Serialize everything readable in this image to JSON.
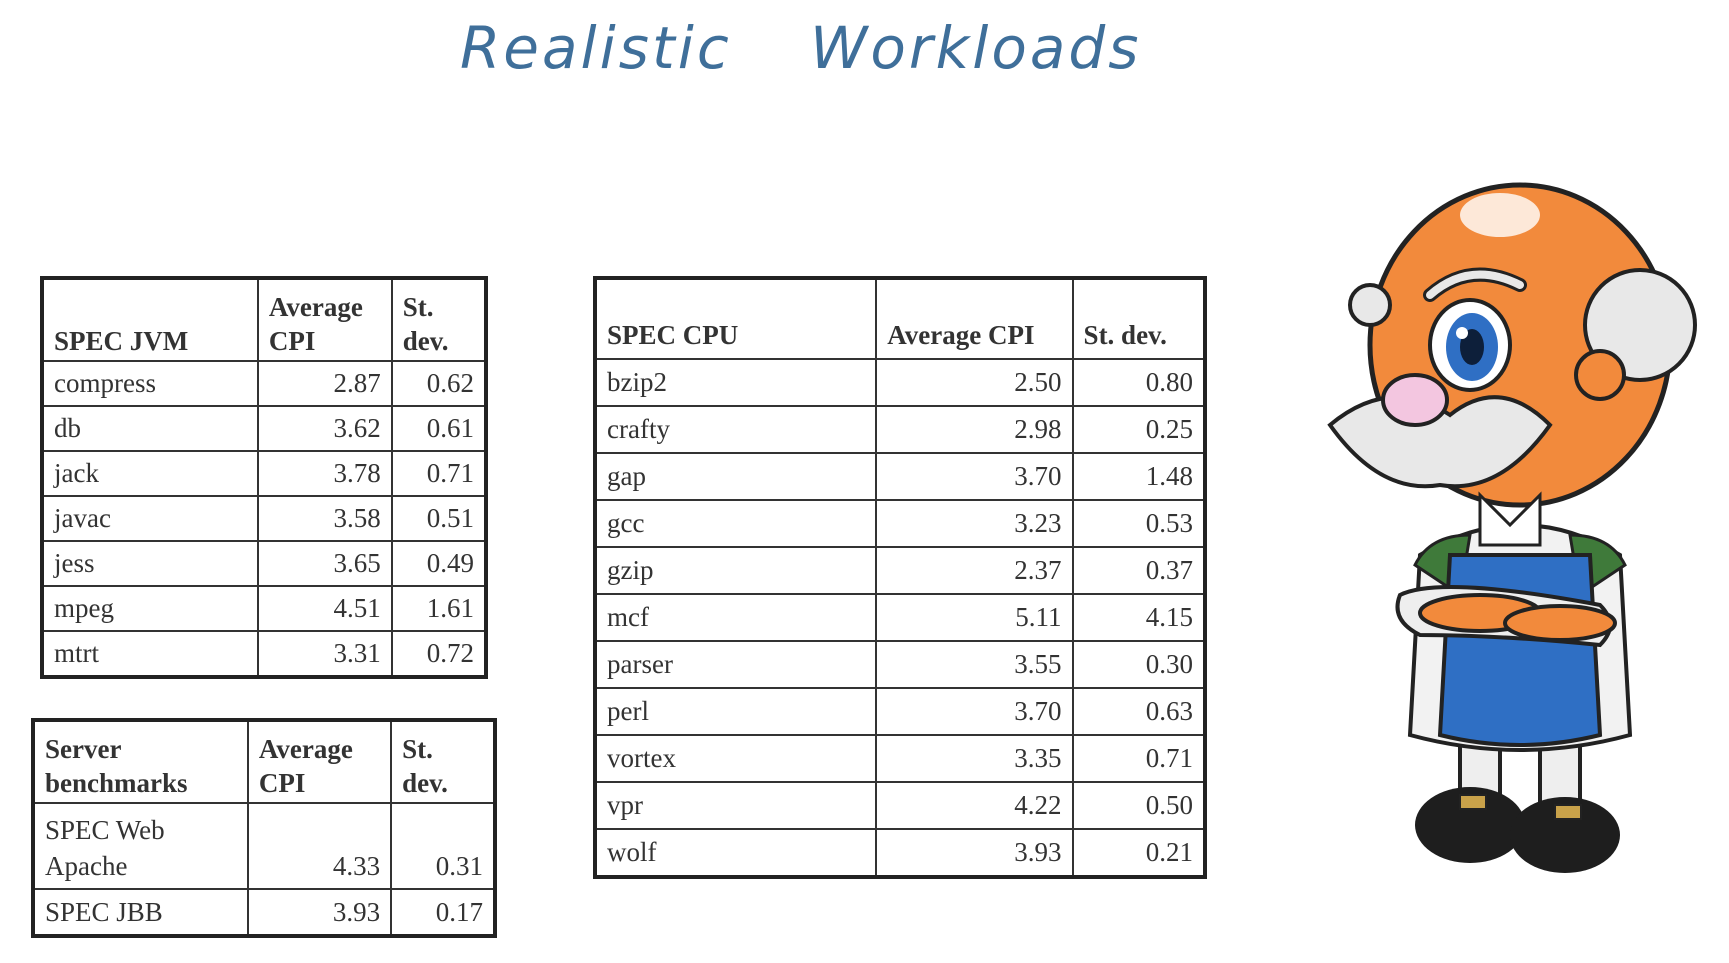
{
  "title": {
    "word1": "Realistic",
    "word2": "Workloads"
  },
  "spec_jvm": {
    "headers": [
      "SPEC JVM",
      "Average CPI",
      "St. dev."
    ],
    "rows": [
      [
        "compress",
        "2.87",
        "0.62"
      ],
      [
        "db",
        "3.62",
        "0.61"
      ],
      [
        "jack",
        "3.78",
        "0.71"
      ],
      [
        "javac",
        "3.58",
        "0.51"
      ],
      [
        "jess",
        "3.65",
        "0.49"
      ],
      [
        "mpeg",
        "4.51",
        "1.61"
      ],
      [
        "mtrt",
        "3.31",
        "0.72"
      ]
    ]
  },
  "server": {
    "headers": [
      "Server benchmarks",
      "Average CPI",
      "St. dev."
    ],
    "rows": [
      [
        "SPEC Web Apache",
        "4.33",
        "0.31"
      ],
      [
        "SPEC JBB",
        "3.93",
        "0.17"
      ]
    ]
  },
  "spec_cpu": {
    "headers": [
      "SPEC CPU",
      "Average CPI",
      "St. dev."
    ],
    "rows": [
      [
        "bzip2",
        "2.50",
        "0.80"
      ],
      [
        "crafty",
        "2.98",
        "0.25"
      ],
      [
        "gap",
        "3.70",
        "1.48"
      ],
      [
        "gcc",
        "3.23",
        "0.53"
      ],
      [
        "gzip",
        "2.37",
        "0.37"
      ],
      [
        "mcf",
        "5.11",
        "4.15"
      ],
      [
        "parser",
        "3.55",
        "0.30"
      ],
      [
        "perl",
        "3.70",
        "0.63"
      ],
      [
        "vortex",
        "3.35",
        "0.71"
      ],
      [
        "vpr",
        "4.22",
        "0.50"
      ],
      [
        "wolf",
        "3.93",
        "0.21"
      ]
    ]
  },
  "colors": {
    "title": "#3f6f9a",
    "skin": "#f28a3c",
    "apron": "#2f6fc4",
    "hair": "#e8e8e8"
  }
}
